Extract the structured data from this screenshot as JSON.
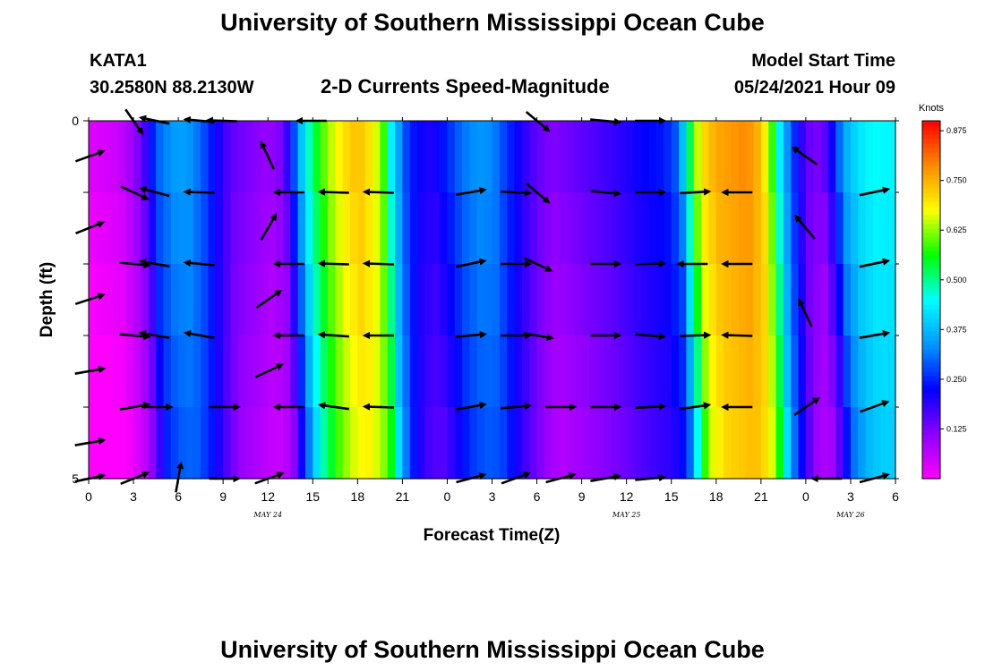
{
  "header": {
    "title_top": "University of Southern Mississippi Ocean Cube",
    "title_bottom": "University of Southern Mississippi Ocean Cube",
    "station_id": "KATA1",
    "station_coords": "30.2580N  88.2130W",
    "chart_subtitle": "2-D Currents Speed-Magnitude",
    "model_label": "Model Start Time",
    "model_time": "05/24/2021 Hour 09"
  },
  "chart_data": {
    "type": "heatmap",
    "title": "2-D Currents Speed-Magnitude",
    "xlabel": "Forecast Time(Z)",
    "ylabel": "Depth (ft)",
    "x_tick_labels": [
      "0",
      "3",
      "6",
      "9",
      "12",
      "15",
      "18",
      "21",
      "0",
      "3",
      "6",
      "9",
      "12",
      "15",
      "18",
      "21",
      "0",
      "3",
      "6"
    ],
    "x_hours": [
      0,
      3,
      6,
      9,
      12,
      15,
      18,
      21,
      24,
      27,
      30,
      33,
      36,
      39,
      42,
      45,
      48,
      51,
      54
    ],
    "xlim": [
      0,
      54
    ],
    "date_labels": [
      {
        "label": "MAY 24",
        "hour": 12
      },
      {
        "label": "MAY 25",
        "hour": 36
      },
      {
        "label": "MAY 26",
        "hour": 51
      }
    ],
    "y_tick_labels": [
      "0",
      "5"
    ],
    "ylim": [
      0,
      5
    ],
    "depth_layers": [
      0.5,
      1.5,
      2.5,
      3.5,
      4.5
    ],
    "colorbar": {
      "unit": "Knots",
      "range": [
        0.0,
        0.9
      ],
      "ticks": [
        "0.875",
        "0.750",
        "0.625",
        "0.500",
        "0.375",
        "0.250",
        "0.125"
      ],
      "tick_values": [
        0.875,
        0.75,
        0.625,
        0.5,
        0.375,
        0.25,
        0.125
      ],
      "stops": [
        "#ff00ff",
        "#8c00ff",
        "#0000ff",
        "#0096ff",
        "#00ffff",
        "#00ff00",
        "#ffff00",
        "#ff8c00",
        "#ff0000"
      ]
    },
    "speed_profile": [
      [
        0,
        0.03
      ],
      [
        2,
        0.05
      ],
      [
        3,
        0.1
      ],
      [
        3.5,
        0.14
      ],
      [
        4,
        0.2
      ],
      [
        4.5,
        0.29
      ],
      [
        5.5,
        0.34
      ],
      [
        6.5,
        0.35
      ],
      [
        7.5,
        0.3
      ],
      [
        8.5,
        0.22
      ],
      [
        9.5,
        0.15
      ],
      [
        11,
        0.12
      ],
      [
        12,
        0.1
      ],
      [
        13,
        0.13
      ],
      [
        13.6,
        0.25
      ],
      [
        14.3,
        0.4
      ],
      [
        15,
        0.52
      ],
      [
        16,
        0.63
      ],
      [
        17,
        0.7
      ],
      [
        18,
        0.74
      ],
      [
        19,
        0.69
      ],
      [
        19.7,
        0.6
      ],
      [
        20.3,
        0.42
      ],
      [
        21.2,
        0.28
      ],
      [
        22,
        0.22
      ],
      [
        23,
        0.2
      ],
      [
        24,
        0.25
      ],
      [
        25,
        0.31
      ],
      [
        26,
        0.34
      ],
      [
        27,
        0.33
      ],
      [
        28,
        0.26
      ],
      [
        29,
        0.2
      ],
      [
        30,
        0.15
      ],
      [
        31,
        0.12
      ],
      [
        33,
        0.15
      ],
      [
        35,
        0.18
      ],
      [
        37,
        0.22
      ],
      [
        38.5,
        0.24
      ],
      [
        39.5,
        0.3
      ],
      [
        40,
        0.46
      ],
      [
        40.6,
        0.62
      ],
      [
        41,
        0.7
      ],
      [
        42,
        0.76
      ],
      [
        44,
        0.79
      ],
      [
        45,
        0.74
      ],
      [
        45.7,
        0.6
      ],
      [
        46.3,
        0.42
      ],
      [
        47,
        0.29
      ],
      [
        48,
        0.15
      ],
      [
        49,
        0.12
      ],
      [
        49.8,
        0.22
      ],
      [
        50.5,
        0.35
      ],
      [
        51.5,
        0.42
      ],
      [
        52.5,
        0.45
      ],
      [
        54,
        0.44
      ]
    ],
    "arrows": [
      {
        "hour": 0,
        "depth": 0.5,
        "dir": 20
      },
      {
        "hour": 0,
        "depth": 1.5,
        "dir": 22
      },
      {
        "hour": 0,
        "depth": 2.5,
        "dir": 18
      },
      {
        "hour": 0,
        "depth": 3.5,
        "dir": 10
      },
      {
        "hour": 0,
        "depth": 4.5,
        "dir": 10
      },
      {
        "hour": 0,
        "depth": 5.0,
        "dir": 12
      },
      {
        "hour": 3,
        "depth": 0.0,
        "dir": -55
      },
      {
        "hour": 3,
        "depth": 1.0,
        "dir": -25
      },
      {
        "hour": 3,
        "depth": 2.0,
        "dir": -5
      },
      {
        "hour": 3,
        "depth": 3.0,
        "dir": -5
      },
      {
        "hour": 3,
        "depth": 4.0,
        "dir": 10
      },
      {
        "hour": 3,
        "depth": 5.0,
        "dir": 22
      },
      {
        "hour": 4.5,
        "depth": 0.0,
        "dir": 168
      },
      {
        "hour": 4.5,
        "depth": 1.0,
        "dir": 165
      },
      {
        "hour": 4.5,
        "depth": 2.0,
        "dir": 170
      },
      {
        "hour": 4.5,
        "depth": 3.0,
        "dir": 170
      },
      {
        "hour": 4.5,
        "depth": 4.0,
        "dir": 0
      },
      {
        "hour": 6,
        "depth": 5.0,
        "dir": 80
      },
      {
        "hour": 7.5,
        "depth": 0.0,
        "dir": 175
      },
      {
        "hour": 7.5,
        "depth": 1.0,
        "dir": 178
      },
      {
        "hour": 7.5,
        "depth": 2.0,
        "dir": 175
      },
      {
        "hour": 7.5,
        "depth": 3.0,
        "dir": 170
      },
      {
        "hour": 9,
        "depth": 0.0,
        "dir": 178
      },
      {
        "hour": 9,
        "depth": 4.0,
        "dir": 0
      },
      {
        "hour": 9,
        "depth": 5.0,
        "dir": 0
      },
      {
        "hour": 12,
        "depth": 0.5,
        "dir": 115
      },
      {
        "hour": 12,
        "depth": 1.5,
        "dir": 60
      },
      {
        "hour": 12,
        "depth": 2.5,
        "dir": 35
      },
      {
        "hour": 12,
        "depth": 3.5,
        "dir": 25
      },
      {
        "hour": 12,
        "depth": 5.0,
        "dir": 20
      },
      {
        "hour": 13.5,
        "depth": 1.0,
        "dir": 180
      },
      {
        "hour": 13.5,
        "depth": 2.0,
        "dir": 180
      },
      {
        "hour": 13.5,
        "depth": 3.0,
        "dir": 180
      },
      {
        "hour": 13.5,
        "depth": 4.0,
        "dir": 180
      },
      {
        "hour": 15,
        "depth": 0.0,
        "dir": 180
      },
      {
        "hour": 16.5,
        "depth": 1.0,
        "dir": 178
      },
      {
        "hour": 16.5,
        "depth": 2.0,
        "dir": 178
      },
      {
        "hour": 16.5,
        "depth": 3.0,
        "dir": 176
      },
      {
        "hour": 16.5,
        "depth": 4.0,
        "dir": 172
      },
      {
        "hour": 19.5,
        "depth": 1.0,
        "dir": 178
      },
      {
        "hour": 19.5,
        "depth": 2.0,
        "dir": 178
      },
      {
        "hour": 19.5,
        "depth": 3.0,
        "dir": 180
      },
      {
        "hour": 19.5,
        "depth": 4.0,
        "dir": 178
      },
      {
        "hour": 25.5,
        "depth": 1.0,
        "dir": 10
      },
      {
        "hour": 25.5,
        "depth": 2.0,
        "dir": 12
      },
      {
        "hour": 25.5,
        "depth": 3.0,
        "dir": 5
      },
      {
        "hour": 25.5,
        "depth": 4.0,
        "dir": 10
      },
      {
        "hour": 25.5,
        "depth": 5.0,
        "dir": 15
      },
      {
        "hour": 28.5,
        "depth": 1.0,
        "dir": -3
      },
      {
        "hour": 28.5,
        "depth": 2.0,
        "dir": 0
      },
      {
        "hour": 28.5,
        "depth": 3.0,
        "dir": 0
      },
      {
        "hour": 28.5,
        "depth": 4.0,
        "dir": 5
      },
      {
        "hour": 28.5,
        "depth": 5.0,
        "dir": 20
      },
      {
        "hour": 30,
        "depth": 0.0,
        "dir": -40
      },
      {
        "hour": 30,
        "depth": 1.0,
        "dir": -40
      },
      {
        "hour": 30,
        "depth": 2.0,
        "dir": -25
      },
      {
        "hour": 30,
        "depth": 3.0,
        "dir": -10
      },
      {
        "hour": 31.5,
        "depth": 4.0,
        "dir": 0
      },
      {
        "hour": 31.5,
        "depth": 5.0,
        "dir": 15
      },
      {
        "hour": 34.5,
        "depth": 0.0,
        "dir": -5
      },
      {
        "hour": 34.5,
        "depth": 1.0,
        "dir": -5
      },
      {
        "hour": 34.5,
        "depth": 2.0,
        "dir": 0
      },
      {
        "hour": 34.5,
        "depth": 3.0,
        "dir": 0
      },
      {
        "hour": 34.5,
        "depth": 4.0,
        "dir": 0
      },
      {
        "hour": 34.5,
        "depth": 5.0,
        "dir": 10
      },
      {
        "hour": 37.5,
        "depth": 0.0,
        "dir": 0
      },
      {
        "hour": 37.5,
        "depth": 1.0,
        "dir": 0
      },
      {
        "hour": 37.5,
        "depth": 2.0,
        "dir": 2
      },
      {
        "hour": 37.5,
        "depth": 3.0,
        "dir": -5
      },
      {
        "hour": 37.5,
        "depth": 4.0,
        "dir": 3
      },
      {
        "hour": 37.5,
        "depth": 5.0,
        "dir": 5
      },
      {
        "hour": 40.5,
        "depth": 1.0,
        "dir": 3
      },
      {
        "hour": 40.5,
        "depth": 2.0,
        "dir": 180
      },
      {
        "hour": 40.5,
        "depth": 3.0,
        "dir": 2
      },
      {
        "hour": 40.5,
        "depth": 4.0,
        "dir": 8
      },
      {
        "hour": 43.5,
        "depth": 1.0,
        "dir": 180
      },
      {
        "hour": 43.5,
        "depth": 2.0,
        "dir": 180
      },
      {
        "hour": 43.5,
        "depth": 3.0,
        "dir": 178
      },
      {
        "hour": 43.5,
        "depth": 4.0,
        "dir": 180
      },
      {
        "hour": 48,
        "depth": 0.5,
        "dir": 145
      },
      {
        "hour": 48,
        "depth": 1.5,
        "dir": 130
      },
      {
        "hour": 48,
        "depth": 2.7,
        "dir": 115
      },
      {
        "hour": 48,
        "depth": 4.0,
        "dir": 35
      },
      {
        "hour": 49.5,
        "depth": 5.0,
        "dir": 180
      },
      {
        "hour": 52.5,
        "depth": 1.0,
        "dir": 12
      },
      {
        "hour": 52.5,
        "depth": 2.0,
        "dir": 12
      },
      {
        "hour": 52.5,
        "depth": 3.0,
        "dir": 10
      },
      {
        "hour": 52.5,
        "depth": 4.0,
        "dir": 20
      },
      {
        "hour": 52.5,
        "depth": 5.0,
        "dir": 15
      }
    ]
  }
}
